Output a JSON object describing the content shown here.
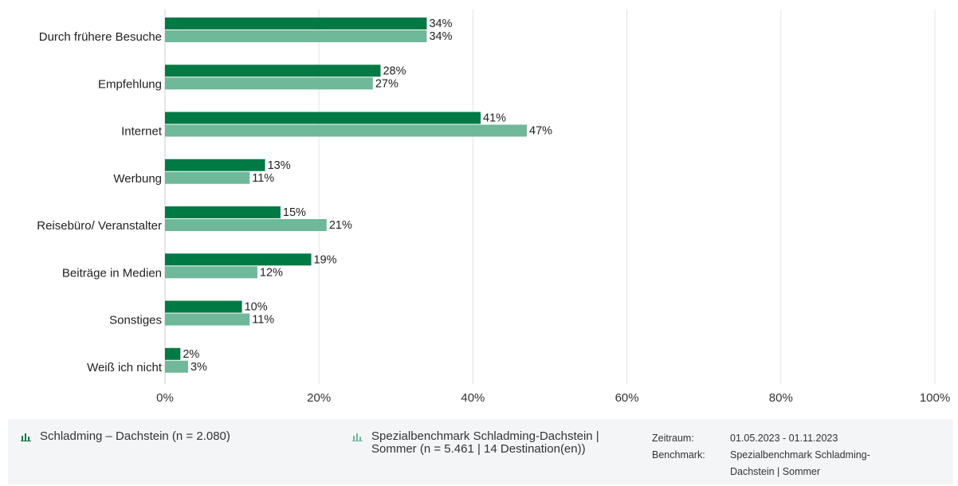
{
  "chart_data": {
    "type": "bar",
    "orientation": "horizontal",
    "categories": [
      "Durch frühere Besuche",
      "Empfehlung",
      "Internet",
      "Werbung",
      "Reisebüro/ Veranstalter",
      "Beiträge in Medien",
      "Sonstiges",
      "Weiß ich nicht"
    ],
    "series": [
      {
        "name": "Schladming – Dachstein (n = 2.080)",
        "color": "#007a45",
        "values": [
          34,
          28,
          41,
          13,
          15,
          19,
          10,
          2
        ]
      },
      {
        "name": "Spezialbenchmark Schladming-Dachstein | Sommer (n = 5.461 | 14 Destination(en))",
        "color": "#6fb89a",
        "values": [
          34,
          27,
          47,
          11,
          21,
          12,
          11,
          3
        ]
      }
    ],
    "value_labels": [
      [
        "34%",
        "28%",
        "41%",
        "13%",
        "15%",
        "19%",
        "10%",
        "2%"
      ],
      [
        "34%",
        "27%",
        "47%",
        "11%",
        "21%",
        "12%",
        "11%",
        "3%"
      ]
    ],
    "xlim": [
      0,
      100
    ],
    "xticks": [
      0,
      20,
      40,
      60,
      80,
      100
    ],
    "xtick_labels": [
      "0%",
      "20%",
      "40%",
      "60%",
      "80%",
      "100%"
    ],
    "grid": "vertical",
    "legend_placement": "bottom"
  },
  "legend": {
    "items": [
      {
        "label": "Schladming – Dachstein (n = 2.080)",
        "color": "#007a45"
      },
      {
        "label": "Spezialbenchmark Schladming-Dachstein |\nSommer (n = 5.461 | 14 Destination(en))",
        "color": "#6fb89a"
      }
    ]
  },
  "meta": {
    "zeitraum_label": "Zeitraum:",
    "zeitraum_value": "01.05.2023 - 01.11.2023",
    "benchmark_label": "Benchmark:",
    "benchmark_value": "Spezialbenchmark Schladming-Dachstein | Sommer"
  }
}
